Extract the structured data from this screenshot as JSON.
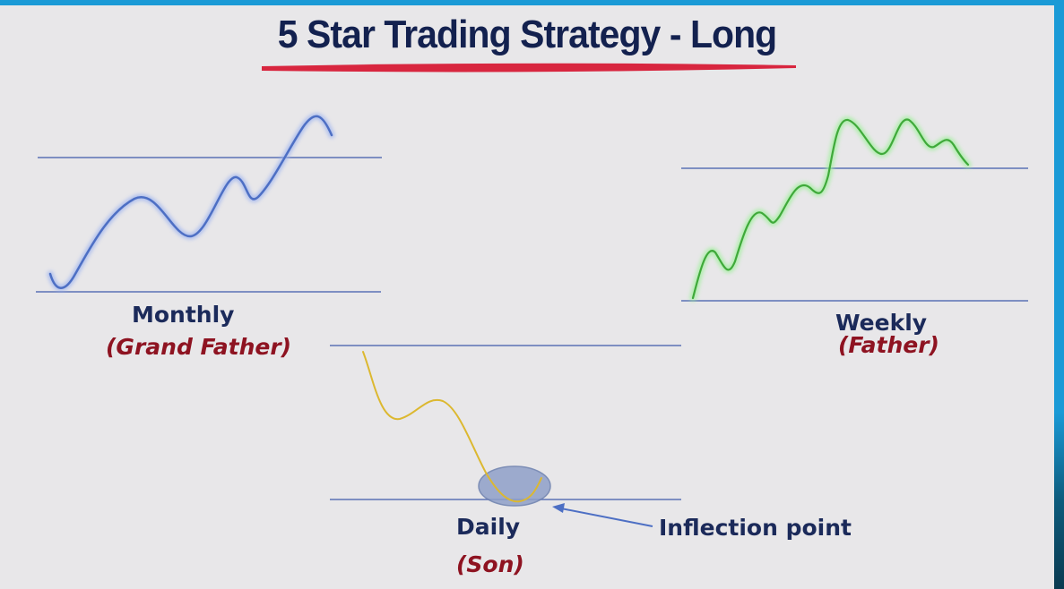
{
  "title": "5 Star Trading Strategy - Long",
  "panels": {
    "monthly": {
      "label": "Monthly",
      "role": "(Grand Father)",
      "line_color": "#4d6fc4"
    },
    "weekly": {
      "label": "Weekly",
      "role": "(Father)",
      "line_color": "#3fa93a"
    },
    "daily": {
      "label": "Daily",
      "role": "(Son)",
      "line_color": "#dcb830"
    }
  },
  "annotation": {
    "label": "Inflection point"
  },
  "colors": {
    "title": "#13214f",
    "title_underline": "#d8263f",
    "level_lines": "#5b72b5",
    "highlight_ellipse": "#8fa0c9",
    "label_text": "#1b2a5a",
    "role_text": "#8e1321"
  }
}
